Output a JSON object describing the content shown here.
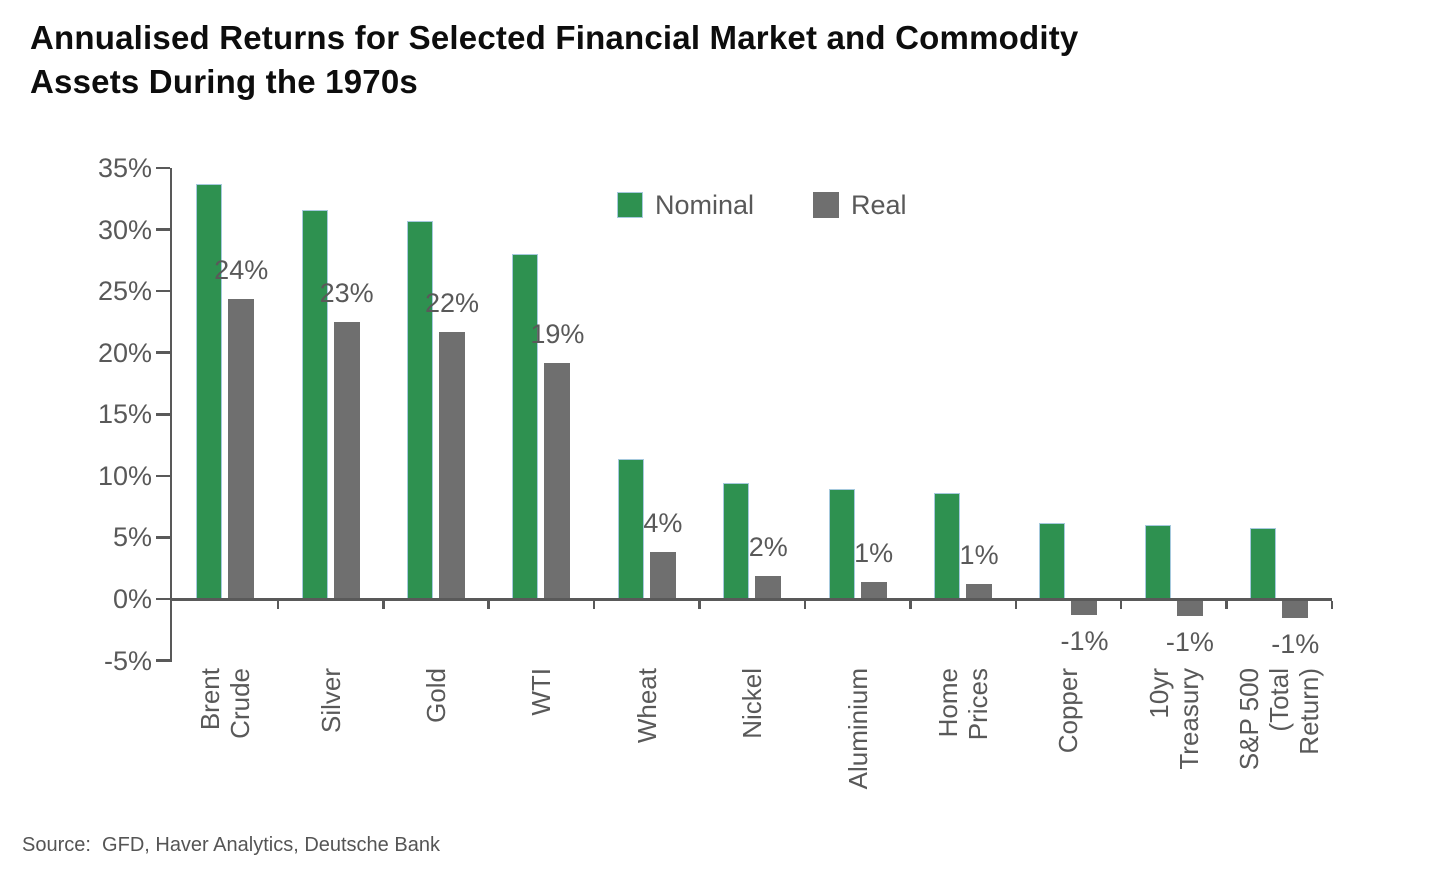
{
  "page": {
    "title": "Annualised Returns for Selected Financial Market and Commodity\nAssets During the 1970s",
    "source": "Source:  GFD, Haver Analytics, Deutsche Bank"
  },
  "colors": {
    "nominal_green": "#2e9150",
    "real_gray": "#6f6f6f",
    "bar_outline_blue": "#a6c9dd",
    "axis_gray": "#595959",
    "label_gray": "#595959"
  },
  "legend": {
    "items": [
      {
        "id": "nominal",
        "label": "Nominal",
        "color": "#2e9150"
      },
      {
        "id": "real",
        "label": "Real",
        "color": "#6f6f6f"
      }
    ]
  },
  "chart_data": {
    "type": "bar",
    "title": "Annualised Returns for Selected Financial Market and Commodity Assets During the 1970s",
    "xlabel": "",
    "ylabel": "",
    "categories": [
      "Brent\nCrude",
      "Silver",
      "Gold",
      "WTI",
      "Wheat",
      "Nickel",
      "Aluminium",
      "Home\nPrices",
      "Copper",
      "10yr\nTreasury",
      "S&P 500\n(Total\nReturn)"
    ],
    "series": [
      {
        "name": "Nominal",
        "color": "#2e9150",
        "values": [
          33.7,
          31.6,
          30.7,
          28.0,
          11.4,
          9.4,
          8.9,
          8.6,
          6.2,
          6.0,
          5.8
        ],
        "data_labels": [
          "",
          "",
          "",
          "",
          "",
          "",
          "",
          "",
          "",
          "",
          ""
        ]
      },
      {
        "name": "Real",
        "color": "#6f6f6f",
        "values": [
          24.4,
          22.5,
          21.7,
          19.2,
          3.8,
          1.9,
          1.4,
          1.2,
          -1.1,
          -1.2,
          -1.4
        ],
        "data_labels": [
          "24%",
          "23%",
          "22%",
          "19%",
          "4%",
          "2%",
          "1%",
          "1%",
          "-1%",
          "-1%",
          "-1%"
        ]
      }
    ],
    "ylim": [
      -5,
      35
    ],
    "ytick_step": 5,
    "ytick_labels": [
      "35%",
      "30%",
      "25%",
      "20%",
      "15%",
      "10%",
      "5%",
      "0%",
      "-5%"
    ],
    "grid": false,
    "legend_position": "inside-top-center",
    "bar_label_series": "Real"
  }
}
